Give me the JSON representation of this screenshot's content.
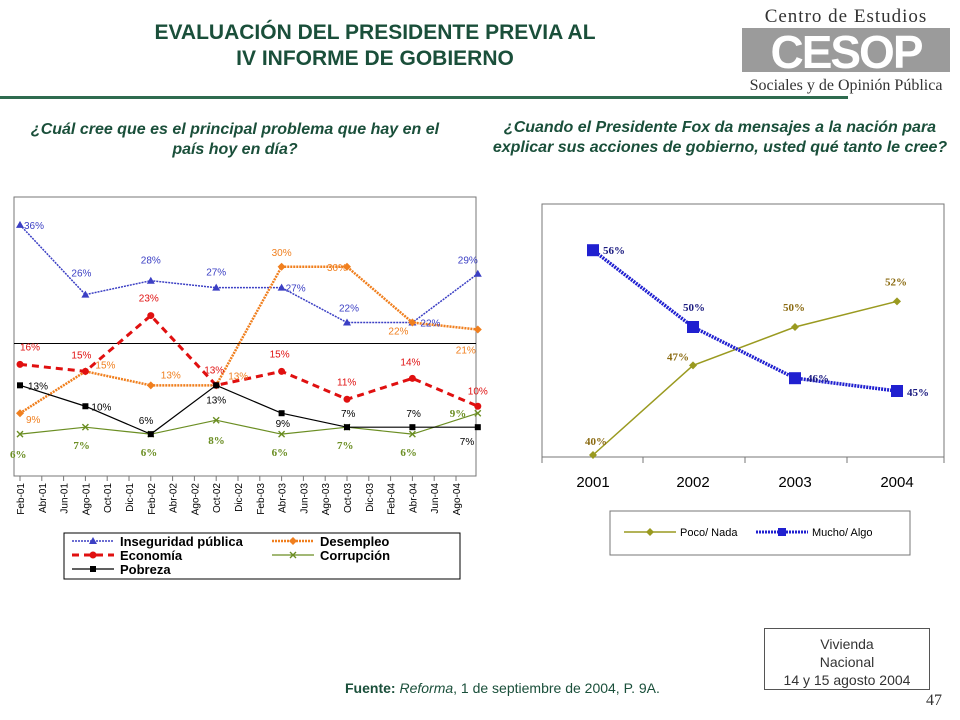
{
  "header": {
    "title_line1": "EVALUACIÓN DEL PRESIDENTE PREVIA AL",
    "title_line2": "IV INFORME DE GOBIERNO",
    "logo_line1": "Centro de Estudios",
    "logo_word": "CESOP",
    "logo_line2": "Sociales y de Opinión Pública"
  },
  "colors": {
    "inseguridad": "#3b3fc4",
    "desempleo": "#f07f1e",
    "economia": "#e01010",
    "corrupcion": "#6b8e23",
    "pobreza": "#000000",
    "poco_nada": "#9a9a20",
    "mucho_algo": "#2020d0",
    "title": "#1a4f3a"
  },
  "chart_data": [
    {
      "type": "line",
      "question": "¿Cuál cree que es el principal problema que hay en el país hoy en día?",
      "categories": [
        "Feb-01",
        "Abr-01",
        "Jun-01",
        "Ago-01",
        "Oct-01",
        "Dic-01",
        "Feb-02",
        "Abr-02",
        "Ago-02",
        "Oct-02",
        "Dic-02",
        "Feb-03",
        "Abr-03",
        "Jun-03",
        "Ago-03",
        "Oct-03",
        "Dic-03",
        "Feb-04",
        "Abr-04",
        "Jun-04",
        "Ago-04"
      ],
      "series": [
        {
          "name": "Inseguridad pública",
          "key": "inseguridad",
          "points": [
            [
              0,
              36
            ],
            [
              3,
              26
            ],
            [
              6,
              28
            ],
            [
              9,
              27
            ],
            [
              12,
              27
            ],
            [
              15,
              22
            ],
            [
              18,
              22
            ],
            [
              21,
              29
            ]
          ]
        },
        {
          "name": "Desempleo",
          "key": "desempleo",
          "points": [
            [
              0,
              9
            ],
            [
              3,
              15
            ],
            [
              6,
              13
            ],
            [
              9,
              13
            ],
            [
              12,
              30
            ],
            [
              15,
              30
            ],
            [
              18,
              22
            ],
            [
              21,
              21
            ]
          ]
        },
        {
          "name": "Economía",
          "key": "economia",
          "points": [
            [
              0,
              16
            ],
            [
              3,
              15
            ],
            [
              6,
              23
            ],
            [
              9,
              13
            ],
            [
              12,
              15
            ],
            [
              15,
              11
            ],
            [
              18,
              14
            ],
            [
              21,
              10
            ]
          ]
        },
        {
          "name": "Corrupción",
          "key": "corrupcion",
          "points": [
            [
              0,
              6
            ],
            [
              3,
              7
            ],
            [
              6,
              6
            ],
            [
              9,
              8
            ],
            [
              12,
              6
            ],
            [
              15,
              7
            ],
            [
              18,
              6
            ],
            [
              21,
              9
            ]
          ]
        },
        {
          "name": "Pobreza",
          "key": "pobreza",
          "points": [
            [
              0,
              13
            ],
            [
              3,
              10
            ],
            [
              6,
              6
            ],
            [
              9,
              13
            ],
            [
              12,
              9
            ],
            [
              15,
              7
            ],
            [
              18,
              7
            ],
            [
              21,
              7
            ]
          ]
        }
      ],
      "labels": [
        {
          "x": 0,
          "y": 36,
          "text": "36%",
          "c": "inseguridad",
          "dx": 4,
          "dy": 4
        },
        {
          "x": 3,
          "y": 26,
          "text": "26%",
          "c": "inseguridad",
          "dx": -14,
          "dy": -18
        },
        {
          "x": 6,
          "y": 28,
          "text": "28%",
          "c": "inseguridad",
          "dx": -10,
          "dy": -17
        },
        {
          "x": 9,
          "y": 27,
          "text": "27%",
          "c": "inseguridad",
          "dx": -10,
          "dy": -12
        },
        {
          "x": 12,
          "y": 27,
          "text": "27%",
          "c": "inseguridad",
          "dx": 4,
          "dy": 4
        },
        {
          "x": 15,
          "y": 22,
          "text": "22%",
          "c": "inseguridad",
          "dx": -8,
          "dy": -11
        },
        {
          "x": 18,
          "y": 22,
          "text": "22%",
          "c": "inseguridad",
          "dx": 8,
          "dy": 4
        },
        {
          "x": 21,
          "y": 29,
          "text": "29%",
          "c": "inseguridad",
          "dx": -20,
          "dy": -10
        },
        {
          "x": 0,
          "y": 9,
          "text": "9%",
          "c": "desempleo",
          "dx": 6,
          "dy": 10
        },
        {
          "x": 3,
          "y": 15,
          "text": "15%",
          "c": "desempleo",
          "dx": 10,
          "dy": -3
        },
        {
          "x": 6,
          "y": 13,
          "text": "13%",
          "c": "desempleo",
          "dx": 10,
          "dy": -7
        },
        {
          "x": 9,
          "y": 13,
          "text": "13%",
          "c": "desempleo",
          "dx": 12,
          "dy": -6
        },
        {
          "x": 12,
          "y": 30,
          "text": "30%",
          "c": "desempleo",
          "dx": -10,
          "dy": -11
        },
        {
          "x": 15,
          "y": 30,
          "text": "30%",
          "c": "desempleo",
          "dx": -20,
          "dy": 4
        },
        {
          "x": 18,
          "y": 22,
          "text": "22%",
          "c": "desempleo",
          "dx": -24,
          "dy": 12
        },
        {
          "x": 21,
          "y": 21,
          "text": "21%",
          "c": "desempleo",
          "dx": -22,
          "dy": 24
        },
        {
          "x": 0,
          "y": 16,
          "text": "16%",
          "c": "economia",
          "dx": 0,
          "dy": -14
        },
        {
          "x": 3,
          "y": 15,
          "text": "15%",
          "c": "economia",
          "dx": -14,
          "dy": -13
        },
        {
          "x": 6,
          "y": 23,
          "text": "23%",
          "c": "economia",
          "dx": -12,
          "dy": -14
        },
        {
          "x": 9,
          "y": 13,
          "text": "13%",
          "c": "economia",
          "dx": -12,
          "dy": -12
        },
        {
          "x": 12,
          "y": 15,
          "text": "15%",
          "c": "economia",
          "dx": -12,
          "dy": -14
        },
        {
          "x": 15,
          "y": 11,
          "text": "11%",
          "c": "economia",
          "dx": -10,
          "dy": -14
        },
        {
          "x": 18,
          "y": 14,
          "text": "14%",
          "c": "economia",
          "dx": -12,
          "dy": -13
        },
        {
          "x": 21,
          "y": 10,
          "text": "10%",
          "c": "economia",
          "dx": -10,
          "dy": -12
        },
        {
          "x": 0,
          "y": 6,
          "text": "6%",
          "c": "corrupcion",
          "dx": -10,
          "dy": 24
        },
        {
          "x": 3,
          "y": 7,
          "text": "7%",
          "c": "corrupcion",
          "dx": -12,
          "dy": 22
        },
        {
          "x": 6,
          "y": 6,
          "text": "6%",
          "c": "corrupcion",
          "dx": -10,
          "dy": 22
        },
        {
          "x": 9,
          "y": 8,
          "text": "8%",
          "c": "corrupcion",
          "dx": -8,
          "dy": 24
        },
        {
          "x": 12,
          "y": 6,
          "text": "6%",
          "c": "corrupcion",
          "dx": -10,
          "dy": 22
        },
        {
          "x": 15,
          "y": 7,
          "text": "7%",
          "c": "corrupcion",
          "dx": -10,
          "dy": 22
        },
        {
          "x": 18,
          "y": 6,
          "text": "6%",
          "c": "corrupcion",
          "dx": -12,
          "dy": 22
        },
        {
          "x": 21,
          "y": 9,
          "text": "9%",
          "c": "corrupcion",
          "dx": -28,
          "dy": 4
        },
        {
          "x": 0,
          "y": 13,
          "text": "13%",
          "c": "pobreza",
          "dx": 8,
          "dy": 4
        },
        {
          "x": 3,
          "y": 10,
          "text": "10%",
          "c": "pobreza",
          "dx": 6,
          "dy": 4
        },
        {
          "x": 6,
          "y": 6,
          "text": "6%",
          "c": "pobreza",
          "dx": -12,
          "dy": -10
        },
        {
          "x": 9,
          "y": 13,
          "text": "13%",
          "c": "pobreza",
          "dx": -10,
          "dy": 18
        },
        {
          "x": 12,
          "y": 9,
          "text": "9%",
          "c": "pobreza",
          "dx": -6,
          "dy": 14
        },
        {
          "x": 15,
          "y": 7,
          "text": "7%",
          "c": "pobreza",
          "dx": -6,
          "dy": -10
        },
        {
          "x": 18,
          "y": 7,
          "text": "7%",
          "c": "pobreza",
          "dx": -6,
          "dy": -10
        },
        {
          "x": 21,
          "y": 7,
          "text": "7%",
          "c": "pobreza",
          "dx": -18,
          "dy": 18
        }
      ]
    },
    {
      "type": "line",
      "question": "¿Cuando el Presidente Fox da mensajes a la nación para explicar sus acciones de gobierno, usted qué tanto le cree?",
      "categories": [
        "2001",
        "2002",
        "2003",
        "2004"
      ],
      "series": [
        {
          "name": "Poco/ Nada",
          "key": "poco_nada",
          "values": [
            40,
            47,
            50,
            52
          ]
        },
        {
          "name": "Mucho/ Algo",
          "key": "mucho_algo",
          "values": [
            56,
            50,
            46,
            45
          ]
        }
      ],
      "labels": [
        {
          "s": "poco_nada",
          "i": 0,
          "text": "40%",
          "dx": -8,
          "dy": -10
        },
        {
          "s": "poco_nada",
          "i": 1,
          "text": "47%",
          "dx": -26,
          "dy": -5
        },
        {
          "s": "poco_nada",
          "i": 2,
          "text": "50%",
          "dx": -12,
          "dy": -16
        },
        {
          "s": "poco_nada",
          "i": 3,
          "text": "52%",
          "dx": -12,
          "dy": -16
        },
        {
          "s": "mucho_algo",
          "i": 0,
          "text": "56%",
          "dx": 10,
          "dy": 4
        },
        {
          "s": "mucho_algo",
          "i": 1,
          "text": "50%",
          "dx": -10,
          "dy": -16
        },
        {
          "s": "mucho_algo",
          "i": 2,
          "text": "46%",
          "dx": 12,
          "dy": 4
        },
        {
          "s": "mucho_algo",
          "i": 3,
          "text": "45%",
          "dx": 10,
          "dy": 5
        }
      ]
    }
  ],
  "footer": {
    "source_label": "Fuente:",
    "source_pub": "Reforma",
    "source_rest": ", 1 de septiembre de 2004, P. 9A.",
    "note_line1": "Vivienda",
    "note_line2": "Nacional",
    "note_line3": "14 y 15 agosto 2004",
    "page": "47"
  }
}
